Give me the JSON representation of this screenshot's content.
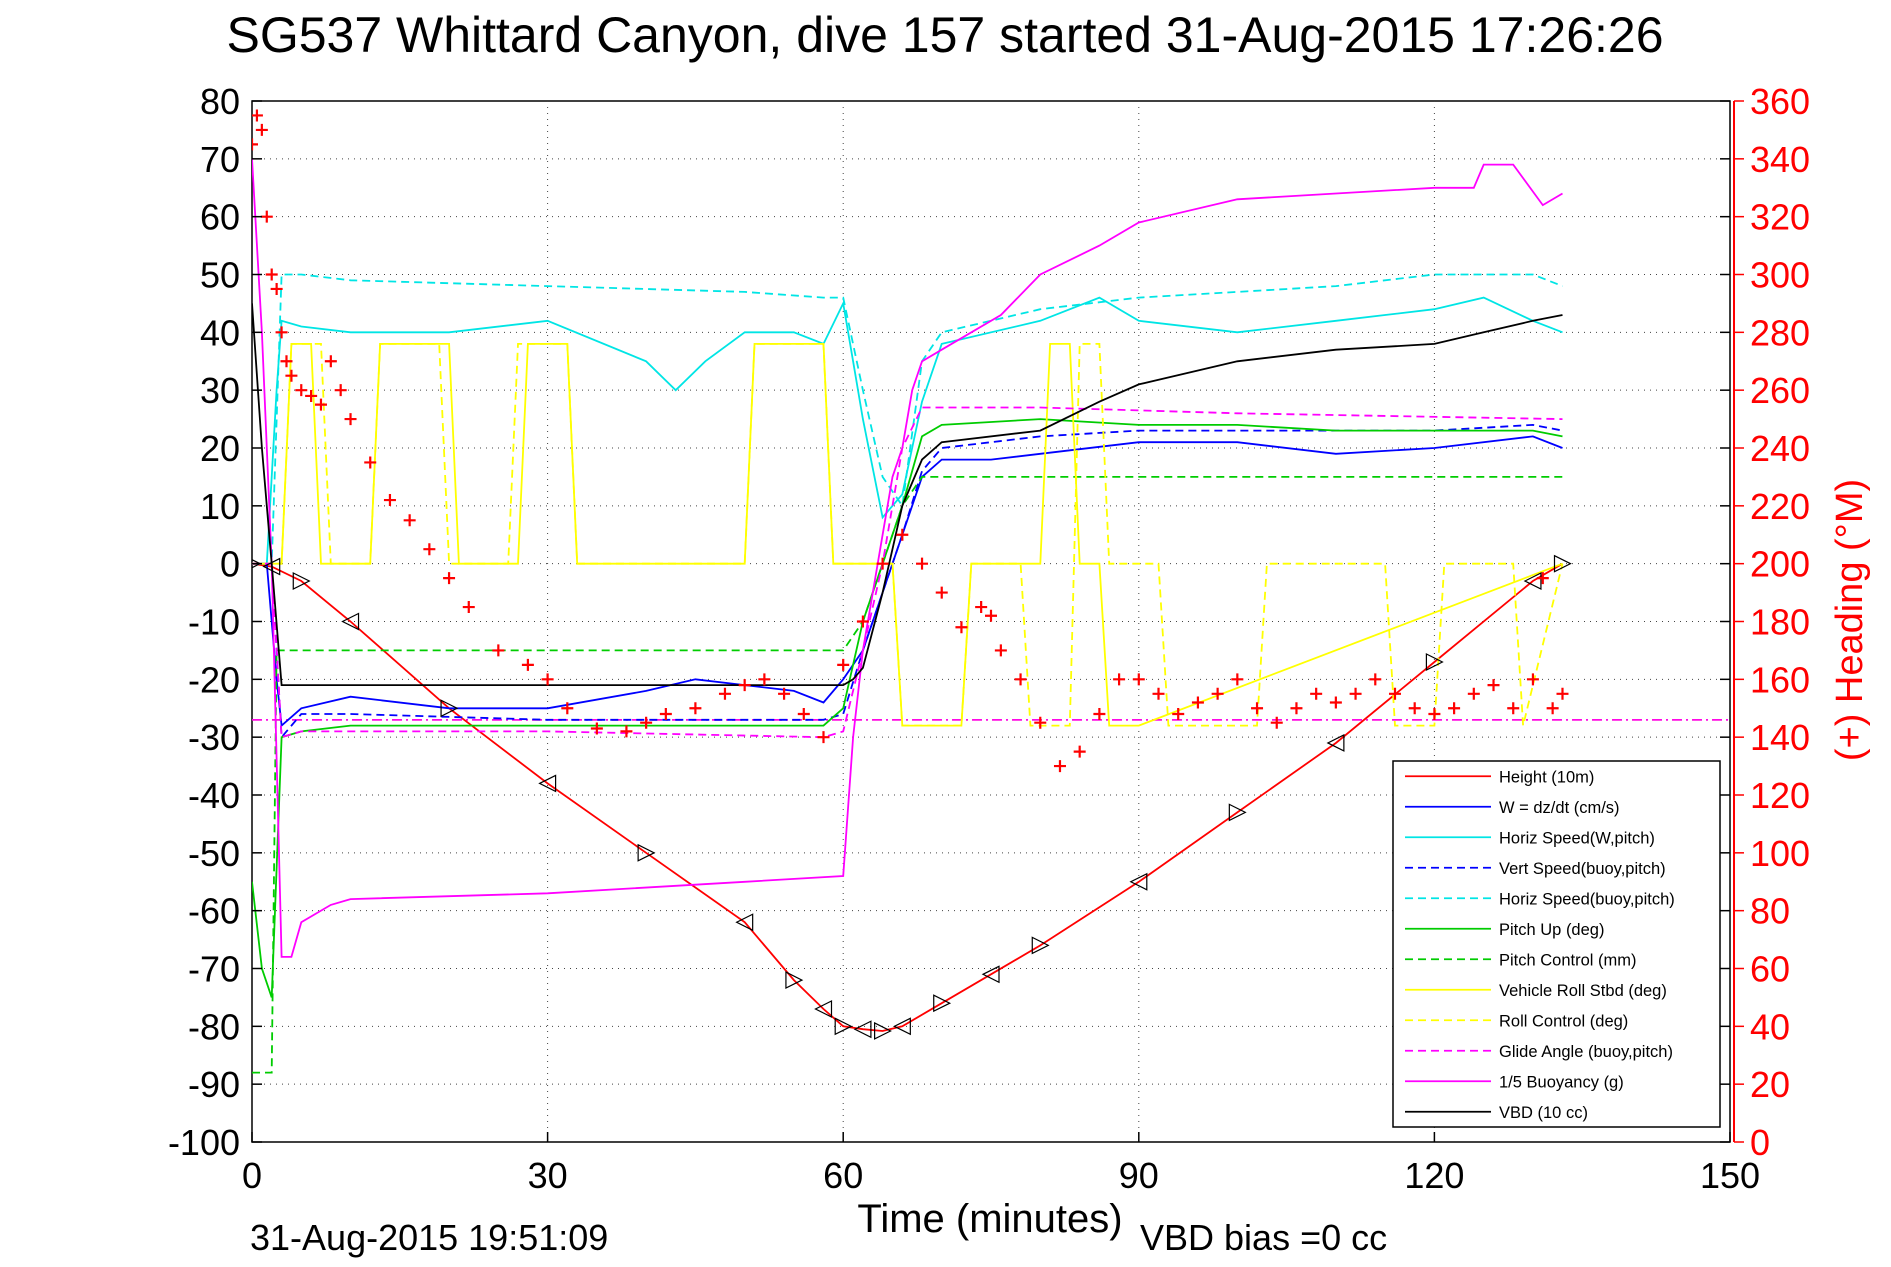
{
  "chart_data": {
    "type": "line",
    "title": "SG537 Whittard Canyon, dive 157 started 31-Aug-2015 17:26:26",
    "xlabel": "Time (minutes)",
    "ylabel_left": "",
    "ylabel_right": "(+) Heading (°M)",
    "xlim": [
      0,
      150
    ],
    "ylim": [
      -100,
      80
    ],
    "ylim_right": [
      0,
      360
    ],
    "xticks": [
      0,
      30,
      60,
      90,
      120,
      150
    ],
    "yticks": [
      80,
      70,
      60,
      50,
      40,
      30,
      20,
      10,
      0,
      -10,
      -20,
      -30,
      -40,
      -50,
      -60,
      -70,
      -80,
      -90,
      -100
    ],
    "yticks_right": [
      360,
      340,
      320,
      300,
      280,
      260,
      240,
      220,
      200,
      180,
      160,
      140,
      120,
      100,
      80,
      60,
      40,
      20,
      0
    ],
    "grid": true,
    "legend_position": "bottom-right",
    "footer_left": "31-Aug-2015 19:51:09",
    "footer_right": "VBD bias =0 cc",
    "series": [
      {
        "name": "Height (10m)",
        "color": "#ff0000",
        "style": "solid",
        "x": [
          0,
          2,
          5,
          10,
          20,
          30,
          40,
          50,
          55,
          58,
          60,
          62,
          64,
          66,
          70,
          75,
          80,
          90,
          100,
          110,
          120,
          130,
          133
        ],
        "y": [
          0,
          -0.5,
          -3,
          -10,
          -25,
          -38,
          -50,
          -62,
          -72,
          -77,
          -80,
          -80.5,
          -80.8,
          -80,
          -76,
          -71,
          -66,
          -55,
          -43,
          -31,
          -17,
          -3,
          0
        ]
      },
      {
        "name": "W = dz/dt (cm/s)",
        "color": "#0000ff",
        "style": "solid",
        "x": [
          0,
          1.5,
          2.5,
          3,
          5,
          10,
          20,
          30,
          40,
          45,
          50,
          55,
          58,
          60,
          62,
          64,
          66,
          68,
          70,
          75,
          80,
          90,
          100,
          110,
          120,
          130,
          133
        ],
        "y": [
          0,
          0,
          -20,
          -28,
          -25,
          -23,
          -25,
          -25,
          -22,
          -20,
          -21,
          -22,
          -24,
          -20,
          -15,
          -5,
          5,
          15,
          18,
          18,
          19,
          21,
          21,
          19,
          20,
          22,
          20
        ]
      },
      {
        "name": "Horiz Speed(W,pitch)",
        "color": "#00e5e5",
        "style": "solid",
        "x": [
          0,
          1.5,
          2.5,
          3,
          5,
          10,
          20,
          30,
          40,
          43,
          46,
          50,
          55,
          58,
          60,
          61,
          62,
          64,
          66,
          68,
          70,
          80,
          86,
          90,
          100,
          110,
          115,
          120,
          125,
          130,
          133
        ],
        "y": [
          0,
          0,
          30,
          42,
          41,
          40,
          40,
          42,
          35,
          30,
          35,
          40,
          40,
          38,
          45,
          35,
          25,
          8,
          12,
          28,
          38,
          42,
          46,
          42,
          40,
          42,
          43,
          44,
          46,
          42,
          40
        ]
      },
      {
        "name": "Vert Speed(buoy,pitch)",
        "color": "#0000ff",
        "style": "dashed",
        "x": [
          0,
          2,
          3,
          5,
          10,
          30,
          50,
          58,
          60,
          62,
          64,
          66,
          68,
          70,
          80,
          90,
          100,
          110,
          120,
          130,
          133
        ],
        "y": [
          0,
          0,
          -30,
          -26,
          -26,
          -27,
          -27,
          -27,
          -26,
          -15,
          -5,
          5,
          16,
          20,
          22,
          23,
          23,
          23,
          23,
          24,
          23
        ]
      },
      {
        "name": "Horiz Speed(buoy,pitch)",
        "color": "#00e5e5",
        "style": "dashed",
        "x": [
          0,
          2,
          3,
          5,
          10,
          30,
          50,
          58,
          60,
          62,
          64,
          66,
          68,
          70,
          80,
          90,
          100,
          110,
          120,
          130,
          133
        ],
        "y": [
          0,
          0,
          50,
          50,
          49,
          48,
          47,
          46,
          46,
          30,
          15,
          10,
          35,
          40,
          44,
          46,
          47,
          48,
          50,
          50,
          48
        ]
      },
      {
        "name": "Pitch Up (deg)",
        "color": "#00cc00",
        "style": "solid",
        "x": [
          0,
          1,
          2,
          3,
          5,
          10,
          20,
          30,
          40,
          50,
          58,
          60,
          62,
          64,
          66,
          68,
          70,
          80,
          90,
          100,
          110,
          120,
          130,
          133
        ],
        "y": [
          -55,
          -70,
          -75,
          -30,
          -29,
          -28,
          -28,
          -28,
          -28,
          -28,
          -28,
          -25,
          -10,
          0,
          10,
          22,
          24,
          25,
          24,
          24,
          23,
          23,
          23,
          22
        ]
      },
      {
        "name": "Pitch Control (mm)",
        "color": "#00cc00",
        "style": "dashed",
        "x": [
          0,
          2,
          2.5,
          5,
          30,
          58,
          60,
          62,
          64,
          66,
          68,
          80,
          100,
          133
        ],
        "y": [
          -88,
          -88,
          -15,
          -15,
          -15,
          -15,
          -15,
          -10,
          0,
          10,
          15,
          15,
          15,
          15
        ]
      },
      {
        "name": "Vehicle Roll Stbd (deg)",
        "color": "#ffff00",
        "style": "solid",
        "x": [
          0,
          3,
          4,
          6,
          7,
          12,
          13,
          20,
          21,
          27,
          28,
          32,
          33,
          50,
          51,
          58,
          59,
          60,
          65,
          66,
          68,
          72,
          73,
          80,
          81,
          83,
          84,
          86,
          87,
          90,
          133
        ],
        "y": [
          0,
          0,
          38,
          38,
          0,
          0,
          38,
          38,
          0,
          0,
          38,
          38,
          0,
          0,
          38,
          38,
          0,
          0,
          0,
          -28,
          -28,
          -28,
          0,
          0,
          38,
          38,
          0,
          0,
          -28,
          -28,
          0
        ]
      },
      {
        "name": "Roll Control (deg)",
        "color": "#ffff00",
        "style": "dashed",
        "x": [
          0,
          3,
          4,
          7,
          8,
          12,
          13,
          19,
          20,
          26,
          27,
          32,
          33,
          50,
          51,
          58,
          59,
          65,
          66,
          72,
          73,
          78,
          79,
          83,
          84,
          86,
          87,
          92,
          93,
          102,
          103,
          115,
          116,
          120,
          121,
          128,
          129,
          133
        ],
        "y": [
          0,
          0,
          38,
          38,
          0,
          0,
          38,
          38,
          0,
          0,
          38,
          38,
          0,
          0,
          38,
          38,
          0,
          0,
          -28,
          -28,
          0,
          0,
          -28,
          -28,
          38,
          38,
          0,
          0,
          -28,
          -28,
          0,
          0,
          -28,
          -28,
          0,
          0,
          -28,
          0
        ]
      },
      {
        "name": "Glide Angle (buoy,pitch)",
        "color": "#ff00ff",
        "style": "dashed",
        "x": [
          0,
          2,
          3,
          5,
          30,
          58,
          60,
          62,
          64,
          66,
          68,
          80,
          100,
          133
        ],
        "y": [
          0,
          0,
          -30,
          -29,
          -29,
          -30,
          -29,
          -15,
          0,
          20,
          27,
          27,
          26,
          25
        ]
      },
      {
        "name": "1/5 Buoyancy (g)",
        "color": "#ff00ff",
        "style": "solid",
        "x": [
          0,
          1,
          2,
          3,
          4,
          5,
          8,
          10,
          30,
          50,
          60,
          61,
          62,
          63,
          64,
          65,
          66,
          67,
          68,
          70,
          76,
          80,
          86,
          90,
          100,
          110,
          120,
          124,
          125,
          128,
          131,
          133
        ],
        "y": [
          70,
          40,
          0,
          -68,
          -68,
          -62,
          -59,
          -58,
          -57,
          -55,
          -54,
          -30,
          -15,
          -5,
          5,
          15,
          20,
          30,
          35,
          37,
          43,
          50,
          55,
          59,
          63,
          64,
          65,
          65,
          69,
          69,
          62,
          64
        ]
      },
      {
        "name": "VBD (10 cc)",
        "color": "#000000",
        "style": "solid",
        "x": [
          0,
          1,
          2,
          3,
          5,
          30,
          60,
          61,
          62,
          64,
          66,
          68,
          70,
          80,
          86,
          90,
          100,
          110,
          120,
          125,
          130,
          133
        ],
        "y": [
          45,
          20,
          0,
          -21,
          -21,
          -21,
          -21,
          -20,
          -18,
          -5,
          10,
          18,
          21,
          23,
          28,
          31,
          35,
          37,
          38,
          40,
          42,
          43
        ]
      }
    ],
    "heading_series": {
      "name": "(+) Heading (°M)",
      "color": "#ff0000",
      "marker": "+",
      "axis": "right",
      "x": [
        0,
        0.5,
        1,
        1.5,
        2,
        2.5,
        3,
        3.5,
        4,
        5,
        6,
        7,
        8,
        9,
        10,
        12,
        14,
        16,
        18,
        20,
        22,
        25,
        28,
        30,
        32,
        35,
        38,
        40,
        42,
        45,
        48,
        50,
        52,
        54,
        56,
        58,
        60,
        62,
        64,
        66,
        68,
        70,
        72,
        74,
        75,
        76,
        78,
        80,
        82,
        84,
        86,
        88,
        90,
        92,
        94,
        96,
        98,
        100,
        102,
        104,
        106,
        108,
        110,
        112,
        114,
        116,
        118,
        120,
        122,
        124,
        126,
        128,
        130,
        131,
        132,
        133
      ],
      "y": [
        345,
        355,
        350,
        320,
        300,
        295,
        280,
        270,
        265,
        260,
        258,
        255,
        270,
        260,
        250,
        235,
        222,
        215,
        205,
        195,
        185,
        170,
        165,
        160,
        150,
        143,
        142,
        145,
        148,
        150,
        155,
        158,
        160,
        155,
        148,
        140,
        165,
        180,
        200,
        210,
        200,
        190,
        178,
        185,
        182,
        170,
        160,
        145,
        130,
        135,
        148,
        160,
        160,
        155,
        148,
        152,
        155,
        160,
        150,
        145,
        150,
        155,
        152,
        155,
        160,
        155,
        150,
        148,
        150,
        155,
        158,
        150,
        160,
        195,
        150,
        155
      ]
    },
    "reference_lines": [
      {
        "color": "#ff0000",
        "style": "dashdot",
        "y": -27
      },
      {
        "color": "#ff00ff",
        "style": "dashdot",
        "y": -27
      }
    ]
  }
}
